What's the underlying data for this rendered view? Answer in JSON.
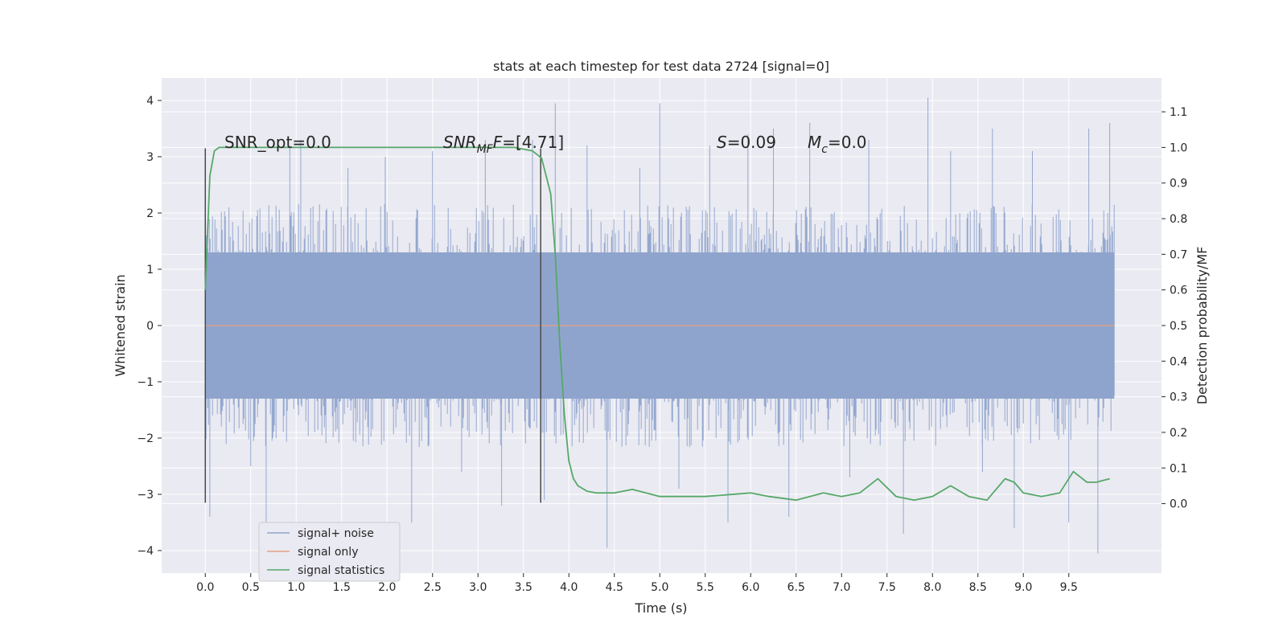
{
  "chart_data": {
    "type": "line",
    "title": "stats at each timestep for test data 2724 [signal=0]",
    "xlabel": "Time (s)",
    "ylabel": "Whitened strain",
    "y2label": "Detection probability/MF",
    "xlim": [
      -0.48,
      10.52
    ],
    "ylim": [
      -4.4,
      4.4
    ],
    "y2lim": [
      -0.195,
      1.195
    ],
    "x_ticks": [
      "0.0",
      "0.5",
      "1.0",
      "1.5",
      "2.0",
      "2.5",
      "3.0",
      "3.5",
      "4.0",
      "4.5",
      "5.0",
      "5.5",
      "6.0",
      "6.5",
      "7.0",
      "7.5",
      "8.0",
      "8.5",
      "9.0",
      "9.5"
    ],
    "y_ticks": [
      "4",
      "3",
      "2",
      "1",
      "0",
      "−1",
      "−2",
      "−3",
      "−4"
    ],
    "y2_ticks": [
      "1.1",
      "1.0",
      "0.9",
      "0.8",
      "0.7",
      "0.6",
      "0.5",
      "0.4",
      "0.3",
      "0.2",
      "0.1",
      "0.0"
    ],
    "grid": true,
    "legend_position": "lower-left",
    "annotations": [
      {
        "key": "snr_opt",
        "text": "SNR_opt=0.0",
        "x": 0.2
      },
      {
        "key": "snr_mf",
        "text": "[4.71]",
        "x": 2.6
      },
      {
        "key": "s",
        "text": "=0.09",
        "x": 5.6
      },
      {
        "key": "mc",
        "text": "=0.0",
        "x": 6.6
      }
    ],
    "markers": [
      {
        "x": 0.0,
        "y_range": [
          -3.15,
          3.15
        ]
      },
      {
        "x": 3.69,
        "y_range": [
          -3.15,
          3.15
        ]
      }
    ],
    "series": [
      {
        "name": "signal+ noise",
        "color": "#8fa4cc",
        "axis": "left",
        "kind": "noise",
        "x_range": [
          0.0,
          10.0
        ],
        "band": [
          -1.3,
          1.3
        ],
        "peaks": [
          [
            0.01,
            1.6
          ],
          [
            0.05,
            -3.4
          ],
          [
            0.26,
            2.1
          ],
          [
            0.5,
            -2.5
          ],
          [
            0.67,
            -3.5
          ],
          [
            0.93,
            3.2
          ],
          [
            1.05,
            3.3
          ],
          [
            1.57,
            2.8
          ],
          [
            1.98,
            3.0
          ],
          [
            2.27,
            -3.5
          ],
          [
            2.5,
            3.1
          ],
          [
            2.82,
            -2.6
          ],
          [
            3.08,
            3.3
          ],
          [
            3.26,
            -3.2
          ],
          [
            3.6,
            3.3
          ],
          [
            3.73,
            -3.1
          ],
          [
            3.85,
            3.95
          ],
          [
            4.2,
            3.2
          ],
          [
            4.42,
            -3.95
          ],
          [
            4.78,
            2.8
          ],
          [
            5.0,
            3.95
          ],
          [
            5.21,
            -2.9
          ],
          [
            5.55,
            3.2
          ],
          [
            5.75,
            -3.5
          ],
          [
            5.97,
            3.4
          ],
          [
            6.25,
            3.5
          ],
          [
            6.42,
            -3.4
          ],
          [
            6.65,
            3.6
          ],
          [
            7.09,
            -2.7
          ],
          [
            7.3,
            3.3
          ],
          [
            7.68,
            -3.7
          ],
          [
            7.95,
            4.05
          ],
          [
            8.2,
            3.1
          ],
          [
            8.55,
            -2.6
          ],
          [
            8.66,
            3.5
          ],
          [
            8.9,
            -3.6
          ],
          [
            9.1,
            3.1
          ],
          [
            9.5,
            -3.5
          ],
          [
            9.72,
            3.5
          ],
          [
            9.82,
            -4.05
          ],
          [
            9.95,
            3.6
          ]
        ]
      },
      {
        "name": "signal only",
        "color": "#e8a083",
        "axis": "left",
        "x": [
          0.0,
          10.0
        ],
        "y": [
          0.0,
          0.0
        ]
      },
      {
        "name": "signal statistics",
        "color": "#55a868",
        "axis": "right",
        "x": [
          0.0,
          0.05,
          0.1,
          0.15,
          0.25,
          0.5,
          1.0,
          2.0,
          3.0,
          3.4,
          3.6,
          3.7,
          3.8,
          3.85,
          3.9,
          3.95,
          4.0,
          4.05,
          4.1,
          4.2,
          4.3,
          4.5,
          4.7,
          5.0,
          5.5,
          6.0,
          6.2,
          6.5,
          6.8,
          7.0,
          7.2,
          7.4,
          7.6,
          7.8,
          8.0,
          8.2,
          8.4,
          8.6,
          8.8,
          8.9,
          9.0,
          9.2,
          9.4,
          9.55,
          9.7,
          9.8,
          9.95
        ],
        "y": [
          0.6,
          0.92,
          0.99,
          1.0,
          1.0,
          1.0,
          1.0,
          1.0,
          1.0,
          1.0,
          0.99,
          0.97,
          0.87,
          0.7,
          0.45,
          0.25,
          0.12,
          0.07,
          0.05,
          0.035,
          0.03,
          0.03,
          0.04,
          0.02,
          0.02,
          0.03,
          0.02,
          0.01,
          0.03,
          0.02,
          0.03,
          0.07,
          0.02,
          0.01,
          0.02,
          0.05,
          0.02,
          0.01,
          0.07,
          0.06,
          0.03,
          0.02,
          0.03,
          0.09,
          0.06,
          0.06,
          0.07
        ]
      }
    ]
  }
}
